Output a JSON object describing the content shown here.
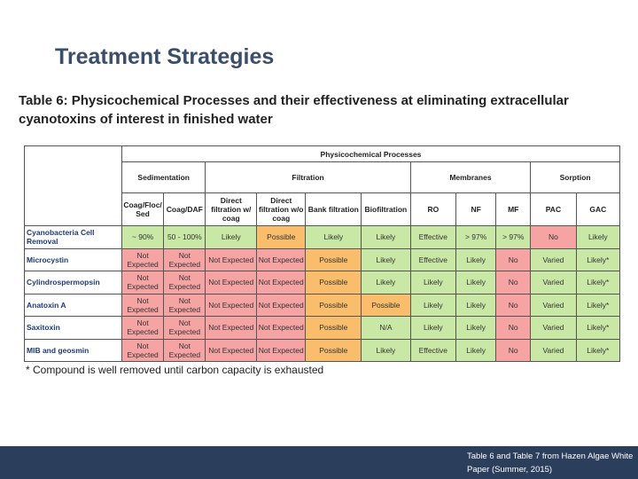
{
  "slide": {
    "title": "Treatment Strategies",
    "footnote": "* Compound is well removed until carbon capacity is exhausted",
    "footer_note": "Table 6 and Table 7 from Hazen Algae White Paper (Summer, 2015)"
  },
  "table": {
    "caption": "Table 6: Physicochemical Processes and their effectiveness at eliminating extracellular cyanotoxins of interest in finished water",
    "super_header": "Physicochemical Processes",
    "groups": [
      "Sedimentation",
      "Filtration",
      "Membranes",
      "Sorption"
    ],
    "columns": [
      "Coag/Floc/ Sed",
      "Coag/DAF",
      "Direct filtration w/ coag",
      "Direct filtration w/o coag",
      "Bank filtration",
      "Biofiltration",
      "RO",
      "NF",
      "MF",
      "PAC",
      "GAC"
    ],
    "rows": [
      {
        "label": "Cyanobacteria Cell Removal",
        "cells": [
          "~ 90%",
          "50 - 100%",
          "Likely",
          "Possible",
          "Likely",
          "Likely",
          "Effective",
          "> 97%",
          "> 97%",
          "No",
          "Likely"
        ],
        "colors": [
          "green",
          "green",
          "green",
          "orange",
          "green",
          "green",
          "green",
          "green",
          "green",
          "red",
          "green"
        ]
      },
      {
        "label": "Microcystin",
        "cells": [
          "Not Expected",
          "Not Expected",
          "Not Expected",
          "Not Expected",
          "Possible",
          "Likely",
          "Effective",
          "Likely",
          "No",
          "Varied",
          "Likely*"
        ],
        "colors": [
          "red",
          "red",
          "red",
          "red",
          "orange",
          "green",
          "green",
          "green",
          "red",
          "green",
          "green"
        ]
      },
      {
        "label": "Cylindrospermopsin",
        "cells": [
          "Not Expected",
          "Not Expected",
          "Not Expected",
          "Not Expected",
          "Possible",
          "Likely",
          "Likely",
          "Likely",
          "No",
          "Varied",
          "Likely*"
        ],
        "colors": [
          "red",
          "red",
          "red",
          "red",
          "orange",
          "green",
          "green",
          "green",
          "red",
          "green",
          "green"
        ]
      },
      {
        "label": "Anatoxin A",
        "cells": [
          "Not Expected",
          "Not Expected",
          "Not Expected",
          "Not Expected",
          "Possible",
          "Possible",
          "Likely",
          "Likely",
          "No",
          "Varied",
          "Likely*"
        ],
        "colors": [
          "red",
          "red",
          "red",
          "red",
          "orange",
          "orange",
          "green",
          "green",
          "red",
          "green",
          "green"
        ]
      },
      {
        "label": "Saxitoxin",
        "cells": [
          "Not Expected",
          "Not Expected",
          "Not Expected",
          "Not Expected",
          "Possible",
          "N/A",
          "Likely",
          "Likely",
          "No",
          "Varied",
          "Likely*"
        ],
        "colors": [
          "red",
          "red",
          "red",
          "red",
          "orange",
          "green",
          "green",
          "green",
          "red",
          "green",
          "green"
        ]
      },
      {
        "label": "MIB and geosmin",
        "cells": [
          "Not Expected",
          "Not Expected",
          "Not Expected",
          "Not Expected",
          "Possible",
          "Likely",
          "Effective",
          "Likely",
          "No",
          "Varied",
          "Likely*"
        ],
        "colors": [
          "red",
          "red",
          "red",
          "red",
          "orange",
          "green",
          "green",
          "green",
          "red",
          "green",
          "green"
        ]
      }
    ]
  }
}
